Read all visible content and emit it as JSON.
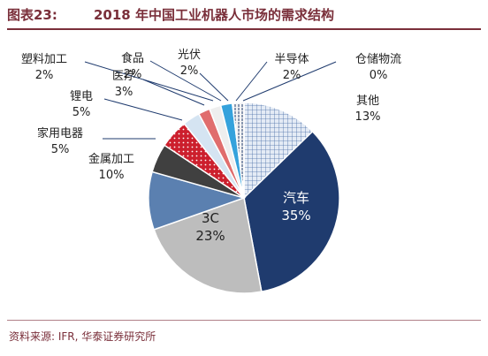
{
  "header": {
    "figure_number": "图表23:",
    "title": "2018 年中国工业机器人市场的需求结构"
  },
  "footer": {
    "source": "资料来源: IFR, 华泰证券研究所"
  },
  "chart_data": {
    "type": "pie",
    "title": "2018 年中国工业机器人市场的需求结构",
    "start": "12 o'clock",
    "direction": "clockwise",
    "slices": [
      {
        "name": "其他",
        "value": 13,
        "label": "13%",
        "color": "#d8e2f0",
        "pattern": "grid"
      },
      {
        "name": "汽车",
        "value": 35,
        "label": "35%",
        "color": "#1f3b6e"
      },
      {
        "name": "3C",
        "value": 23,
        "label": "23%",
        "color": "#bdbdbd"
      },
      {
        "name": "金属加工",
        "value": 10,
        "label": "10%",
        "color": "#5b80b0"
      },
      {
        "name": "家用电器",
        "value": 5,
        "label": "5%",
        "color": "#404040"
      },
      {
        "name": "锂电",
        "value": 5,
        "label": "5%",
        "color": "#cc1f2d",
        "pattern": "dots"
      },
      {
        "name": "医疗",
        "value": 3,
        "label": "3%",
        "color": "#d5e4f2"
      },
      {
        "name": "塑料加工",
        "value": 2,
        "label": "2%",
        "color": "#e06d6d"
      },
      {
        "name": "食品",
        "value": 2,
        "label": "2%",
        "color": "#eeeeee"
      },
      {
        "name": "光伏",
        "value": 2,
        "label": "2%",
        "color": "#35a2dc"
      },
      {
        "name": "半导体",
        "value": 2,
        "label": "2%",
        "color": "#f4f4f4",
        "pattern": "dashes"
      },
      {
        "name": "仓储物流",
        "value": 0,
        "label": "0%",
        "color": "#dddddd"
      }
    ]
  }
}
